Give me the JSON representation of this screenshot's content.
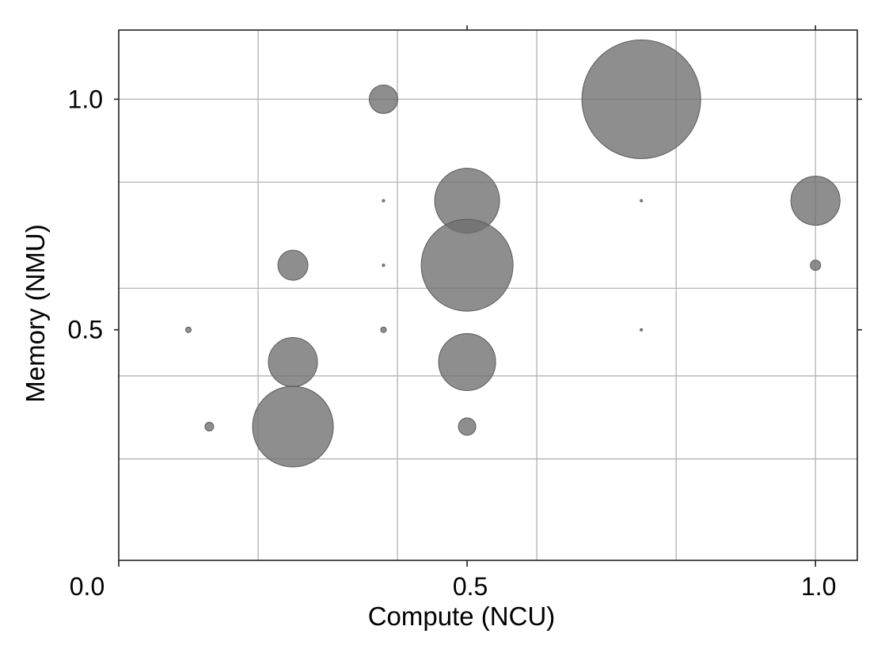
{
  "chart_data": {
    "type": "scatter",
    "title": "",
    "xlabel": "Compute (NCU)",
    "ylabel": "Memory (NMU)",
    "xlim": [
      0.0,
      1.06
    ],
    "ylim": [
      0.0,
      1.15
    ],
    "x_ticks": [
      0.5,
      1.0
    ],
    "x_tick_labels": [
      "0.5",
      "1.0"
    ],
    "y_ticks": [
      0.5,
      1.0
    ],
    "y_tick_labels": [
      "0.5",
      "1.0"
    ],
    "origin_label": "0.0",
    "x_gridlines": [
      0.2,
      0.4,
      0.6,
      0.8,
      1.0
    ],
    "y_gridlines": [
      0.22,
      0.4,
      0.59,
      0.82,
      1.0
    ],
    "grid": true,
    "legend": "none",
    "marker_color": "#6e6e6e",
    "points": [
      {
        "x": 0.38,
        "y": 1.0,
        "size": 18
      },
      {
        "x": 0.75,
        "y": 1.0,
        "size": 75
      },
      {
        "x": 0.5,
        "y": 0.78,
        "size": 41
      },
      {
        "x": 1.0,
        "y": 0.78,
        "size": 31
      },
      {
        "x": 0.38,
        "y": 0.78,
        "size": 1.5
      },
      {
        "x": 0.75,
        "y": 0.78,
        "size": 1.5
      },
      {
        "x": 0.25,
        "y": 0.64,
        "size": 19
      },
      {
        "x": 0.5,
        "y": 0.64,
        "size": 58
      },
      {
        "x": 1.0,
        "y": 0.64,
        "size": 6.5
      },
      {
        "x": 0.38,
        "y": 0.64,
        "size": 1.5
      },
      {
        "x": 0.1,
        "y": 0.5,
        "size": 3.5
      },
      {
        "x": 0.38,
        "y": 0.5,
        "size": 3.5
      },
      {
        "x": 0.75,
        "y": 0.5,
        "size": 1.5
      },
      {
        "x": 0.25,
        "y": 0.43,
        "size": 31
      },
      {
        "x": 0.5,
        "y": 0.43,
        "size": 36
      },
      {
        "x": 0.13,
        "y": 0.29,
        "size": 5.5
      },
      {
        "x": 0.25,
        "y": 0.29,
        "size": 51
      },
      {
        "x": 0.5,
        "y": 0.29,
        "size": 11
      }
    ]
  }
}
